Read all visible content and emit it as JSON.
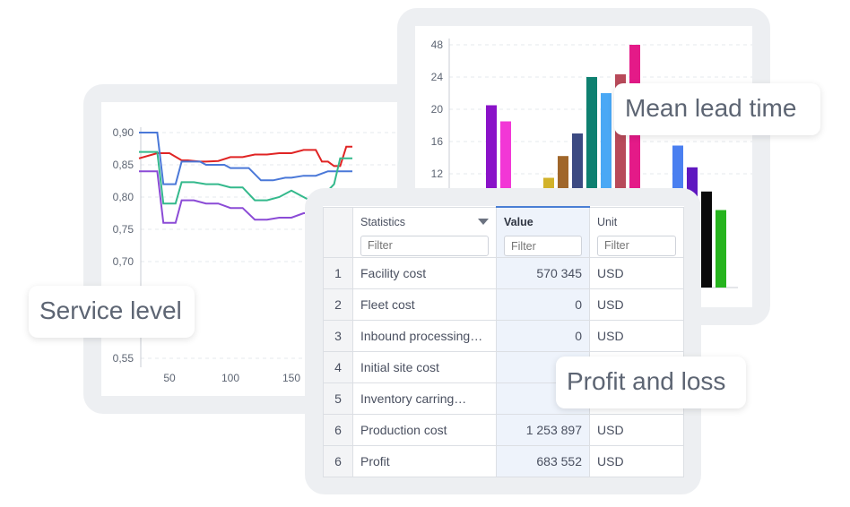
{
  "service_level": {
    "callout": "Service level",
    "chart_data": {
      "type": "line",
      "y_ticks": [
        "0,90",
        "0,85",
        "0,80",
        "0,75",
        "0,70",
        "0,55"
      ],
      "x_ticks": [
        "50",
        "100",
        "150"
      ],
      "xlim": [
        25,
        200
      ],
      "ylim": [
        0.55,
        0.9
      ],
      "series": [
        {
          "color": "#e02424",
          "x": [
            25,
            40,
            50,
            60,
            65,
            75,
            80,
            90,
            100,
            110,
            120,
            130,
            140,
            150,
            160,
            170,
            175,
            180,
            185,
            190,
            195,
            200
          ],
          "values": [
            0.86,
            0.868,
            0.868,
            0.857,
            0.857,
            0.855,
            0.855,
            0.856,
            0.862,
            0.862,
            0.866,
            0.866,
            0.868,
            0.868,
            0.873,
            0.873,
            0.855,
            0.855,
            0.848,
            0.848,
            0.878,
            0.878
          ]
        },
        {
          "color": "#4a78d8",
          "x": [
            25,
            40,
            45,
            55,
            60,
            75,
            80,
            95,
            100,
            115,
            125,
            135,
            145,
            150,
            160,
            170,
            180,
            190,
            200
          ],
          "values": [
            0.9,
            0.9,
            0.82,
            0.82,
            0.855,
            0.855,
            0.85,
            0.85,
            0.845,
            0.845,
            0.826,
            0.826,
            0.83,
            0.83,
            0.833,
            0.833,
            0.84,
            0.84,
            0.84
          ]
        },
        {
          "color": "#34b98c",
          "x": [
            25,
            40,
            45,
            55,
            60,
            70,
            80,
            90,
            100,
            110,
            120,
            130,
            140,
            150,
            160,
            170,
            175,
            185,
            190,
            200
          ],
          "values": [
            0.87,
            0.87,
            0.79,
            0.79,
            0.823,
            0.823,
            0.82,
            0.82,
            0.815,
            0.815,
            0.795,
            0.795,
            0.8,
            0.81,
            0.8,
            0.79,
            0.8,
            0.82,
            0.86,
            0.86
          ]
        },
        {
          "color": "#8b4bd6",
          "x": [
            25,
            40,
            45,
            55,
            60,
            70,
            80,
            90,
            100,
            110,
            120,
            130,
            140,
            150,
            160,
            170
          ],
          "values": [
            0.84,
            0.84,
            0.76,
            0.76,
            0.795,
            0.795,
            0.79,
            0.79,
            0.783,
            0.783,
            0.765,
            0.765,
            0.768,
            0.768,
            0.775,
            0.775
          ]
        }
      ]
    }
  },
  "lead_time": {
    "callout": "Mean lead time",
    "chart_data": {
      "type": "bar",
      "y_ticks": [
        "48",
        "24",
        "20",
        "16",
        "12"
      ],
      "values": [
        20.5,
        18.5,
        11.5,
        14.2,
        17,
        24,
        22,
        26,
        47,
        15.5,
        12.8,
        9.8,
        7.5
      ],
      "colors": [
        "#8a12c8",
        "#f237d6",
        "#d2b22a",
        "#a0662a",
        "#3c4a82",
        "#0e8070",
        "#4aa8f5",
        "#b84a5a",
        "#e41a88",
        "#4a7ff0",
        "#5f18c0",
        "#0a0a0a",
        "#26b41e"
      ]
    }
  },
  "pnl": {
    "callout": "Profit and loss",
    "columns": {
      "statistics": "Statistics",
      "value": "Value",
      "unit": "Unit",
      "filter_placeholder": "Filter"
    },
    "rows": [
      {
        "num": "1",
        "stat": "Facility cost",
        "value": "570 345",
        "unit": "USD"
      },
      {
        "num": "2",
        "stat": "Fleet cost",
        "value": "0",
        "unit": "USD"
      },
      {
        "num": "3",
        "stat": "Inbound processing…",
        "value": "0",
        "unit": "USD"
      },
      {
        "num": "4",
        "stat": "Initial site cost",
        "value": "",
        "unit": ""
      },
      {
        "num": "5",
        "stat": "Inventory carring…",
        "value": "",
        "unit": ""
      },
      {
        "num": "6",
        "stat": "Production cost",
        "value": "1 253 897",
        "unit": "USD"
      },
      {
        "num": "6",
        "stat": "Profit",
        "value": "683 552",
        "unit": "USD"
      }
    ]
  }
}
